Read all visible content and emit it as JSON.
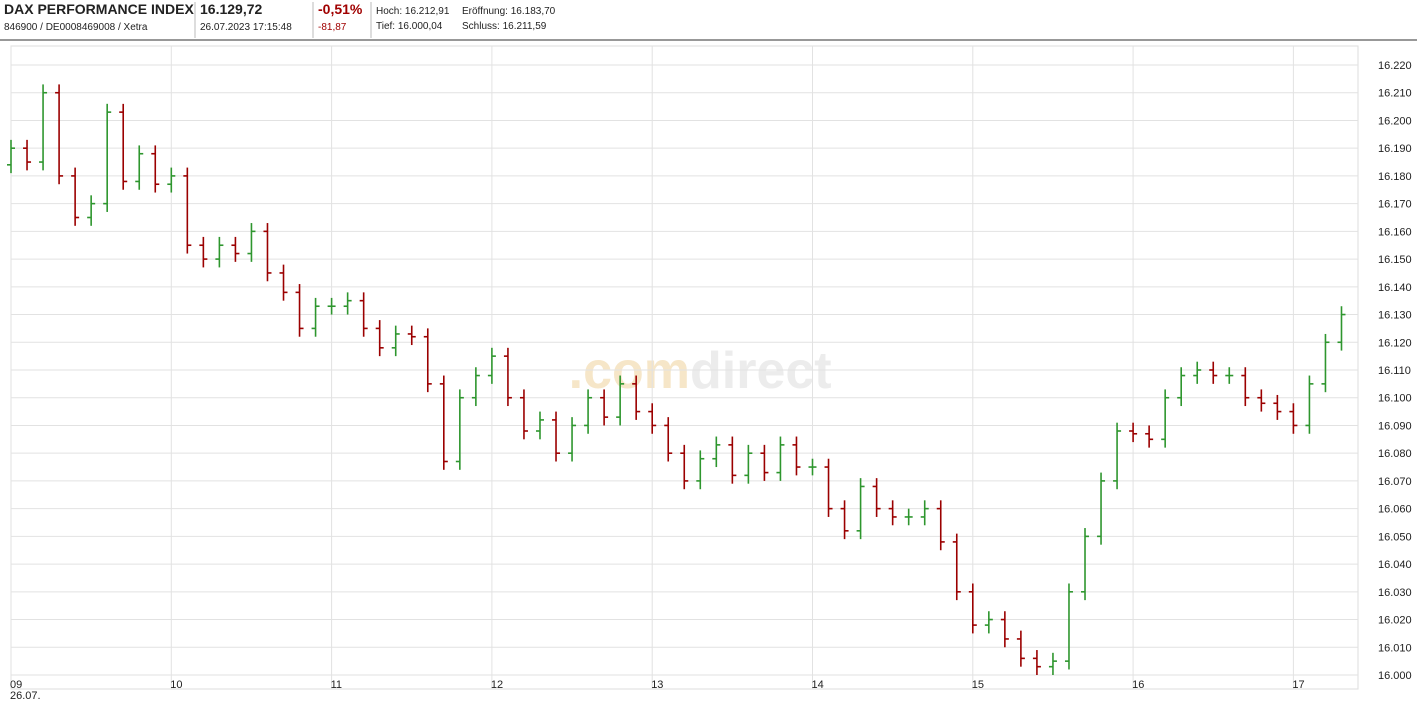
{
  "header": {
    "name": "DAX PERFORMANCE INDEX",
    "ids": "846900 / DE0008469008 / Xetra",
    "price": "16.129,72",
    "timestamp": "26.07.2023 17:15:48",
    "change_pct": "-0,51%",
    "change_abs": "-81,87",
    "high": "Hoch: 16.212,91",
    "open": "Eröffnung: 16.183,70",
    "low": "Tief: 16.000,04",
    "close": "Schluss: 16.211,59"
  },
  "watermark": {
    "prefix": ".com",
    "name": "direct"
  },
  "chart_data": {
    "type": "ohlc",
    "date_label": "26.07.",
    "up_color": "#2e962e",
    "down_color": "#9b0000",
    "grid": true,
    "xlim": [
      9,
      17.4
    ],
    "xticks": [
      {
        "value": 9,
        "label": "09"
      },
      10,
      11,
      12,
      13,
      14,
      15,
      16,
      17
    ],
    "ylim": [
      16000,
      16220
    ],
    "yticks": [
      {
        "value": 16000,
        "label": "16.000"
      },
      {
        "value": 16010,
        "label": "16.010"
      },
      {
        "value": 16020,
        "label": "16.020"
      },
      {
        "value": 16030,
        "label": "16.030"
      },
      {
        "value": 16040,
        "label": "16.040"
      },
      {
        "value": 16050,
        "label": "16.050"
      },
      {
        "value": 16060,
        "label": "16.060"
      },
      {
        "value": 16070,
        "label": "16.070"
      },
      {
        "value": 16080,
        "label": "16.080"
      },
      {
        "value": 16090,
        "label": "16.090"
      },
      {
        "value": 16100,
        "label": "16.100"
      },
      {
        "value": 16110,
        "label": "16.110"
      },
      {
        "value": 16120,
        "label": "16.120"
      },
      {
        "value": 16130,
        "label": "16.130"
      },
      {
        "value": 16140,
        "label": "16.140"
      },
      {
        "value": 16150,
        "label": "16.150"
      },
      {
        "value": 16160,
        "label": "16.160"
      },
      {
        "value": 16170,
        "label": "16.170"
      },
      {
        "value": 16180,
        "label": "16.180"
      },
      {
        "value": 16190,
        "label": "16.190"
      },
      {
        "value": 16200,
        "label": "16.200"
      },
      {
        "value": 16210,
        "label": "16.210"
      },
      {
        "value": 16220,
        "label": "16.220"
      }
    ],
    "x": [
      9.0,
      9.1,
      9.2,
      9.3,
      9.4,
      9.5,
      9.6,
      9.7,
      9.8,
      9.9,
      10.0,
      10.1,
      10.2,
      10.3,
      10.4,
      10.5,
      10.6,
      10.7,
      10.8,
      10.9,
      11.0,
      11.1,
      11.2,
      11.3,
      11.4,
      11.5,
      11.6,
      11.7,
      11.8,
      11.9,
      12.0,
      12.1,
      12.2,
      12.3,
      12.4,
      12.5,
      12.6,
      12.7,
      12.8,
      12.9,
      13.0,
      13.1,
      13.2,
      13.3,
      13.4,
      13.5,
      13.6,
      13.7,
      13.8,
      13.9,
      14.0,
      14.1,
      14.2,
      14.3,
      14.4,
      14.5,
      14.6,
      14.7,
      14.8,
      14.9,
      15.0,
      15.1,
      15.2,
      15.3,
      15.4,
      15.5,
      15.6,
      15.7,
      15.8,
      15.9,
      16.0,
      16.1,
      16.2,
      16.3,
      16.4,
      16.5,
      16.6,
      16.7,
      16.8,
      16.9,
      17.0,
      17.1,
      17.2,
      17.3
    ],
    "open": [
      16184,
      16190,
      16185,
      16210,
      16180,
      16165,
      16170,
      16203,
      16178,
      16188,
      16177,
      16180,
      16155,
      16150,
      16155,
      16152,
      16160,
      16145,
      16138,
      16125,
      16133,
      16133,
      16135,
      16125,
      16118,
      16123,
      16122,
      16105,
      16077,
      16100,
      16108,
      16115,
      16100,
      16088,
      16092,
      16080,
      16090,
      16100,
      16093,
      16105,
      16095,
      16090,
      16080,
      16070,
      16078,
      16083,
      16072,
      16080,
      16073,
      16083,
      16075,
      16075,
      16060,
      16052,
      16068,
      16060,
      16057,
      16057,
      16060,
      16048,
      16030,
      16018,
      16020,
      16013,
      16006,
      16003,
      16005,
      16030,
      16050,
      16070,
      16088,
      16087,
      16085,
      16100,
      16108,
      16110,
      16108,
      16108,
      16100,
      16098,
      16095,
      16090,
      16105,
      16120
    ],
    "high": [
      16193,
      16193,
      16213,
      16213,
      16183,
      16173,
      16206,
      16206,
      16191,
      16191,
      16183,
      16183,
      16158,
      16158,
      16158,
      16163,
      16163,
      16148,
      16141,
      16136,
      16136,
      16138,
      16138,
      16128,
      16126,
      16126,
      16125,
      16108,
      16103,
      16111,
      16118,
      16118,
      16103,
      16095,
      16095,
      16093,
      16103,
      16103,
      16108,
      16108,
      16098,
      16093,
      16083,
      16081,
      16086,
      16086,
      16083,
      16083,
      16086,
      16086,
      16078,
      16078,
      16063,
      16071,
      16071,
      16063,
      16060,
      16063,
      16063,
      16051,
      16033,
      16023,
      16023,
      16016,
      16009,
      16008,
      16033,
      16053,
      16073,
      16091,
      16091,
      16090,
      16103,
      16111,
      16113,
      16113,
      16111,
      16111,
      16103,
      16101,
      16098,
      16108,
      16123,
      16133
    ],
    "low": [
      16181,
      16182,
      16182,
      16177,
      16162,
      16162,
      16167,
      16175,
      16175,
      16174,
      16174,
      16152,
      16147,
      16147,
      16149,
      16149,
      16142,
      16135,
      16122,
      16122,
      16130,
      16130,
      16122,
      16115,
      16115,
      16119,
      16102,
      16074,
      16074,
      16097,
      16105,
      16097,
      16085,
      16085,
      16077,
      16077,
      16087,
      16090,
      16090,
      16092,
      16087,
      16077,
      16067,
      16067,
      16075,
      16069,
      16069,
      16070,
      16070,
      16072,
      16072,
      16057,
      16049,
      16049,
      16057,
      16054,
      16054,
      16054,
      16045,
      16027,
      16015,
      16015,
      16010,
      16003,
      16000,
      16000,
      16002,
      16027,
      16047,
      16067,
      16084,
      16082,
      16082,
      16097,
      16105,
      16105,
      16105,
      16097,
      16095,
      16092,
      16087,
      16087,
      16102,
      16117
    ],
    "close": [
      16190,
      16185,
      16210,
      16180,
      16165,
      16170,
      16203,
      16178,
      16188,
      16177,
      16180,
      16155,
      16150,
      16155,
      16152,
      16160,
      16145,
      16138,
      16125,
      16133,
      16133,
      16135,
      16125,
      16118,
      16123,
      16122,
      16105,
      16077,
      16100,
      16108,
      16115,
      16100,
      16088,
      16092,
      16080,
      16090,
      16100,
      16093,
      16105,
      16095,
      16090,
      16080,
      16070,
      16078,
      16083,
      16072,
      16080,
      16073,
      16083,
      16075,
      16075,
      16060,
      16052,
      16068,
      16060,
      16057,
      16057,
      16060,
      16048,
      16030,
      16018,
      16020,
      16013,
      16006,
      16003,
      16005,
      16030,
      16050,
      16070,
      16088,
      16087,
      16085,
      16100,
      16108,
      16110,
      16108,
      16108,
      16100,
      16098,
      16095,
      16090,
      16105,
      16120,
      16130
    ]
  }
}
